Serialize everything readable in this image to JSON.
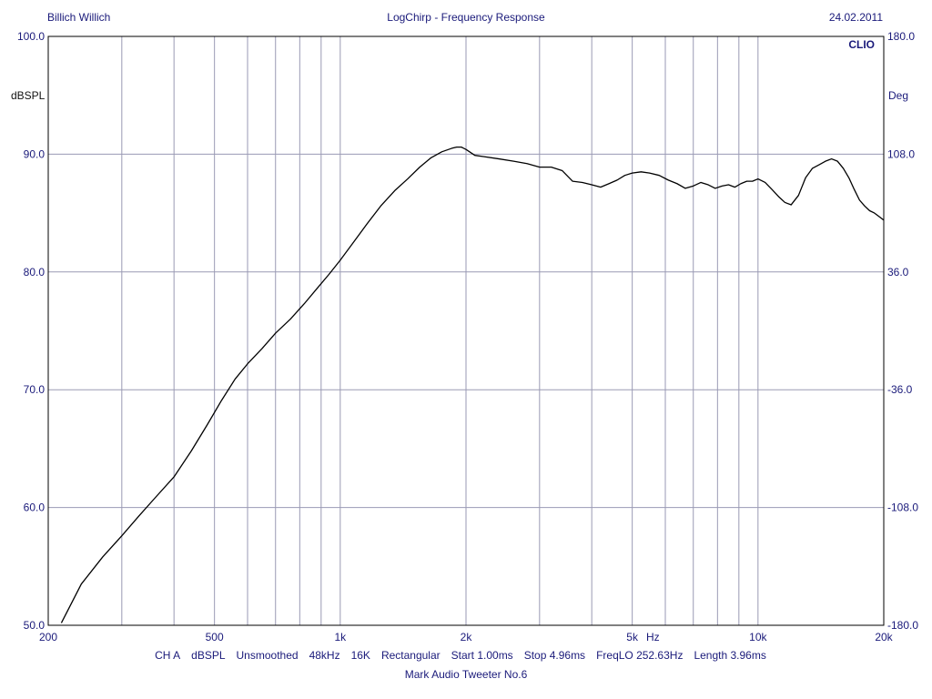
{
  "header": {
    "author": "Billich Willich",
    "title": "LogChirp - Frequency Response",
    "date": "24.02.2011",
    "brand": "CLIO"
  },
  "footer": {
    "settings": [
      "CH A",
      "dBSPL",
      "Unsmoothed",
      "48kHz",
      "16K",
      "Rectangular",
      "Start 1.00ms",
      "Stop 4.96ms",
      "FreqLO 252.63Hz",
      "Length 3.96ms"
    ],
    "description": "Mark Audio Tweeter No.6"
  },
  "colors": {
    "text": "#1a1a7a",
    "grid": "#9a9ab4",
    "trace": "#000000",
    "frame": "#000000"
  },
  "chart_data": {
    "type": "line",
    "x_scale": "log",
    "xlim": [
      200,
      20000
    ],
    "ylim": [
      50,
      100
    ],
    "y2lim": [
      -180,
      180
    ],
    "ylabel": "dBSPL",
    "y2label": "Deg",
    "xunit": "Hz",
    "grid": true,
    "x_gridlines": [
      300,
      400,
      500,
      600,
      700,
      800,
      900,
      1000,
      2000,
      3000,
      4000,
      5000,
      6000,
      7000,
      8000,
      9000,
      10000
    ],
    "x_ticks": [
      {
        "value": 200,
        "label": "200"
      },
      {
        "value": 500,
        "label": "500"
      },
      {
        "value": 1000,
        "label": "1k"
      },
      {
        "value": 2000,
        "label": "2k"
      },
      {
        "value": 5000,
        "label": "5k"
      },
      {
        "value": 10000,
        "label": "10k"
      },
      {
        "value": 20000,
        "label": "20k"
      }
    ],
    "y_ticks": [
      {
        "value": 50,
        "label": "50.0"
      },
      {
        "value": 60,
        "label": "60.0"
      },
      {
        "value": 70,
        "label": "70.0"
      },
      {
        "value": 80,
        "label": "80.0"
      },
      {
        "value": 90,
        "label": "90.0"
      },
      {
        "value": 100,
        "label": "100.0"
      }
    ],
    "y2_ticks": [
      {
        "value": -180,
        "label": "-180.0"
      },
      {
        "value": -108,
        "label": "-108.0"
      },
      {
        "value": -36,
        "label": "-36.0"
      },
      {
        "value": 36,
        "label": "36.0"
      },
      {
        "value": 108,
        "label": "108.0"
      },
      {
        "value": 180,
        "label": "180.0"
      }
    ],
    "series": [
      {
        "x": [
          215,
          240,
          270,
          300,
          330,
          360,
          400,
          440,
          480,
          520,
          560,
          600,
          650,
          700,
          760,
          820,
          880,
          940,
          1000,
          1080,
          1160,
          1250,
          1350,
          1450,
          1550,
          1650,
          1750,
          1850,
          1900,
          1950,
          2000,
          2100,
          2200,
          2400,
          2600,
          2800,
          3000,
          3200,
          3400,
          3600,
          3800,
          4000,
          4200,
          4400,
          4600,
          4800,
          5000,
          5250,
          5500,
          5800,
          6100,
          6400,
          6700,
          7000,
          7300,
          7600,
          7900,
          8200,
          8500,
          8800,
          9100,
          9400,
          9700,
          10000,
          10400,
          10800,
          11200,
          11600,
          12000,
          12500,
          13000,
          13500,
          14000,
          14500,
          15000,
          15500,
          16000,
          16500,
          17000,
          17500,
          18000,
          18500,
          19000,
          19500,
          20000
        ],
        "y": [
          50.2,
          53.5,
          55.8,
          57.6,
          59.3,
          60.8,
          62.6,
          64.8,
          67.0,
          69.1,
          70.9,
          72.2,
          73.5,
          74.8,
          76.0,
          77.3,
          78.6,
          79.8,
          81.0,
          82.6,
          84.1,
          85.6,
          86.9,
          87.9,
          88.9,
          89.7,
          90.2,
          90.5,
          90.6,
          90.6,
          90.4,
          89.9,
          89.8,
          89.6,
          89.4,
          89.2,
          88.9,
          88.9,
          88.6,
          87.7,
          87.6,
          87.4,
          87.2,
          87.5,
          87.8,
          88.2,
          88.4,
          88.5,
          88.4,
          88.2,
          87.8,
          87.5,
          87.1,
          87.3,
          87.6,
          87.4,
          87.1,
          87.3,
          87.4,
          87.2,
          87.5,
          87.7,
          87.7,
          87.9,
          87.6,
          87.0,
          86.4,
          85.9,
          85.7,
          86.5,
          88.0,
          88.8,
          89.1,
          89.4,
          89.6,
          89.4,
          88.8,
          88.0,
          87.0,
          86.1,
          85.6,
          85.2,
          85.0,
          84.7,
          84.4
        ]
      }
    ]
  }
}
